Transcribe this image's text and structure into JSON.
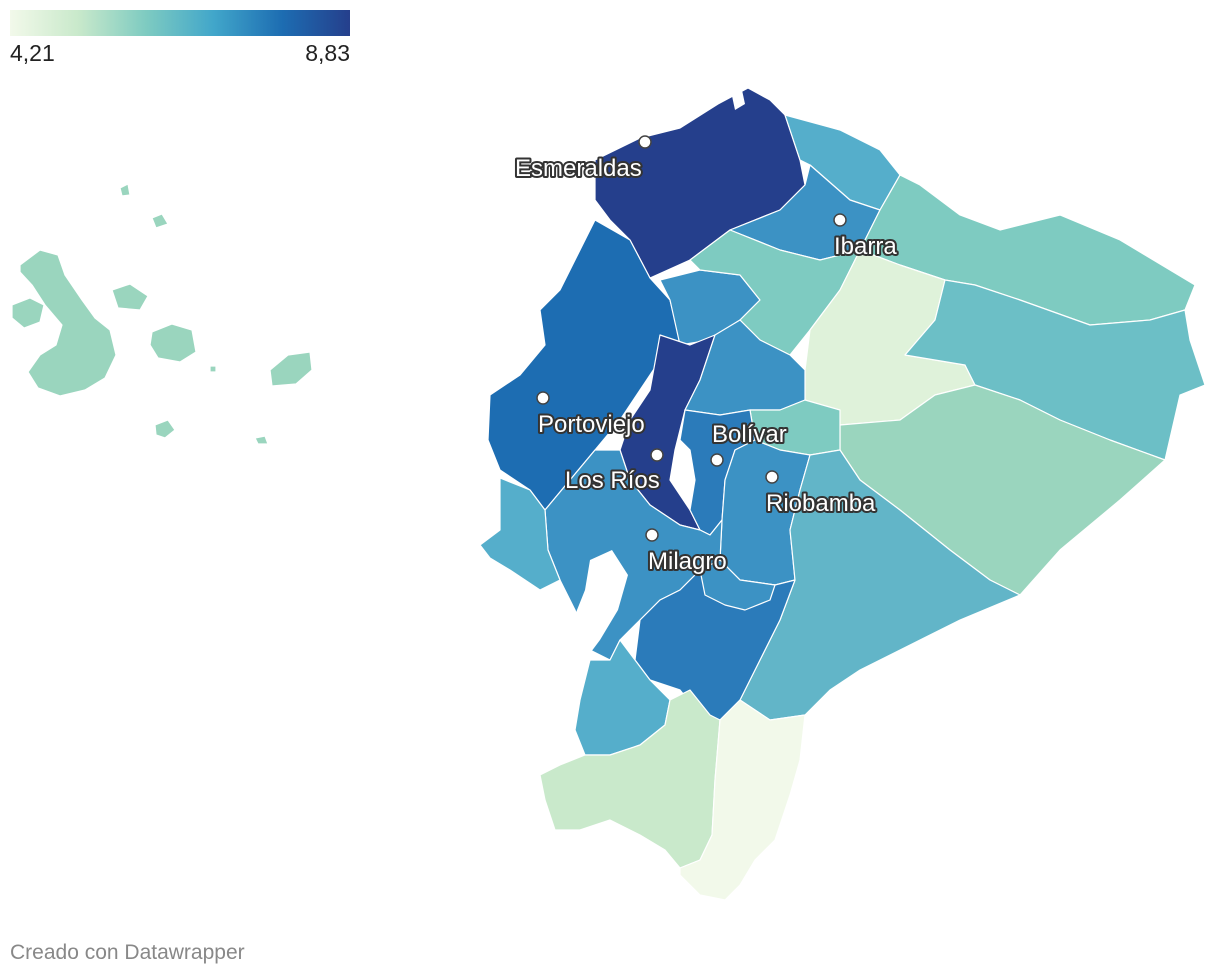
{
  "legend": {
    "min_label": "4,21",
    "max_label": "8,83",
    "colors": [
      "#f2f9ea",
      "#c9e9cb",
      "#7ecbc1",
      "#41a6ca",
      "#1d6db2",
      "#253f8c"
    ]
  },
  "cities": [
    {
      "name": "Esmeraldas"
    },
    {
      "name": "Ibarra"
    },
    {
      "name": "Portoviejo"
    },
    {
      "name": "Bolívar"
    },
    {
      "name": "Los Ríos"
    },
    {
      "name": "Riobamba"
    },
    {
      "name": "Milagro"
    }
  ],
  "footer": {
    "credit": "Creado con Datawrapper"
  }
}
